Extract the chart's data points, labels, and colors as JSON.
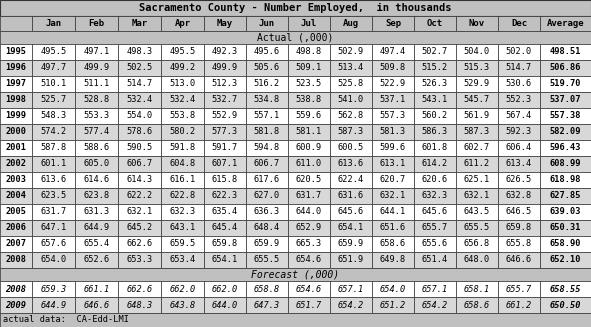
{
  "title": "Sacramento County - Number Employed,  in thousands",
  "columns": [
    "",
    "Jan",
    "Feb",
    "Mar",
    "Apr",
    "May",
    "Jun",
    "Jul",
    "Aug",
    "Sep",
    "Oct",
    "Nov",
    "Dec",
    "Average"
  ],
  "actual_label": "Actual (,000)",
  "forecast_label": "Forecast (,000)",
  "footer": "actual data:  CA-Edd-LMI",
  "actual_rows": [
    [
      "1995",
      "495.5",
      "497.1",
      "498.3",
      "495.5",
      "492.3",
      "495.6",
      "498.8",
      "502.9",
      "497.4",
      "502.7",
      "504.0",
      "502.0",
      "498.51"
    ],
    [
      "1996",
      "497.7",
      "499.9",
      "502.5",
      "499.2",
      "499.9",
      "505.6",
      "509.1",
      "513.4",
      "509.8",
      "515.2",
      "515.3",
      "514.7",
      "506.86"
    ],
    [
      "1997",
      "510.1",
      "511.1",
      "514.7",
      "513.0",
      "512.3",
      "516.2",
      "523.5",
      "525.8",
      "522.9",
      "526.3",
      "529.9",
      "530.6",
      "519.70"
    ],
    [
      "1998",
      "525.7",
      "528.8",
      "532.4",
      "532.4",
      "532.7",
      "534.8",
      "538.8",
      "541.0",
      "537.1",
      "543.1",
      "545.7",
      "552.3",
      "537.07"
    ],
    [
      "1999",
      "548.3",
      "553.3",
      "554.0",
      "553.8",
      "552.9",
      "557.1",
      "559.6",
      "562.8",
      "557.3",
      "560.2",
      "561.9",
      "567.4",
      "557.38"
    ],
    [
      "2000",
      "574.2",
      "577.4",
      "578.6",
      "580.2",
      "577.3",
      "581.8",
      "581.1",
      "587.3",
      "581.3",
      "586.3",
      "587.3",
      "592.3",
      "582.09"
    ],
    [
      "2001",
      "587.8",
      "588.6",
      "590.5",
      "591.8",
      "591.7",
      "594.8",
      "600.9",
      "600.5",
      "599.6",
      "601.8",
      "602.7",
      "606.4",
      "596.43"
    ],
    [
      "2002",
      "601.1",
      "605.0",
      "606.7",
      "604.8",
      "607.1",
      "606.7",
      "611.0",
      "613.6",
      "613.1",
      "614.2",
      "611.2",
      "613.4",
      "608.99"
    ],
    [
      "2003",
      "613.6",
      "614.6",
      "614.3",
      "616.1",
      "615.8",
      "617.6",
      "620.5",
      "622.4",
      "620.7",
      "620.6",
      "625.1",
      "626.5",
      "618.98"
    ],
    [
      "2004",
      "623.5",
      "623.8",
      "622.2",
      "622.8",
      "622.3",
      "627.0",
      "631.7",
      "631.6",
      "632.1",
      "632.3",
      "632.1",
      "632.8",
      "627.85"
    ],
    [
      "2005",
      "631.7",
      "631.3",
      "632.1",
      "632.3",
      "635.4",
      "636.3",
      "644.0",
      "645.6",
      "644.1",
      "645.6",
      "643.5",
      "646.5",
      "639.03"
    ],
    [
      "2006",
      "647.1",
      "644.9",
      "645.2",
      "643.1",
      "645.4",
      "648.4",
      "652.9",
      "654.1",
      "651.6",
      "655.7",
      "655.5",
      "659.8",
      "650.31"
    ],
    [
      "2007",
      "657.6",
      "655.4",
      "662.6",
      "659.5",
      "659.8",
      "659.9",
      "665.3",
      "659.9",
      "658.6",
      "655.6",
      "656.8",
      "655.8",
      "658.90"
    ],
    [
      "2008",
      "654.0",
      "652.6",
      "653.3",
      "653.4",
      "654.1",
      "655.5",
      "654.6",
      "651.9",
      "649.8",
      "651.4",
      "648.0",
      "646.6",
      "652.10"
    ]
  ],
  "forecast_rows": [
    [
      "2008",
      "659.3",
      "661.1",
      "662.6",
      "662.0",
      "662.0",
      "658.8",
      "654.6",
      "657.1",
      "654.0",
      "657.1",
      "658.1",
      "655.7",
      "658.55"
    ],
    [
      "2009",
      "644.9",
      "646.6",
      "648.3",
      "643.8",
      "644.0",
      "647.3",
      "651.7",
      "654.2",
      "651.2",
      "654.2",
      "658.6",
      "661.2",
      "650.50"
    ]
  ],
  "title_bg": "#c0c0c0",
  "header_bg": "#c0c0c0",
  "section_bg": "#c0c0c0",
  "odd_row_bg": "#ffffff",
  "even_row_bg": "#d8d8d8",
  "footer_bg": "#c0c0c0"
}
